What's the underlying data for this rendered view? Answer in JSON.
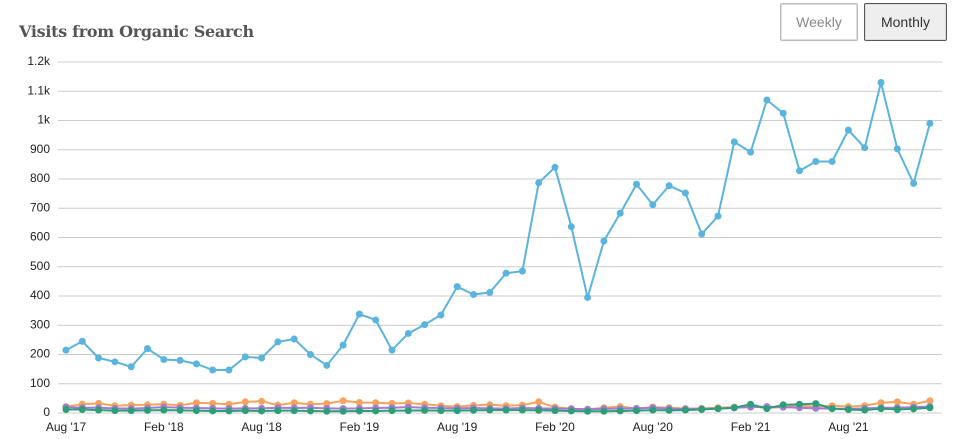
{
  "chart_data": {
    "type": "line",
    "title": "Visits from Organic Search",
    "controls": [
      "Weekly",
      "Monthly"
    ],
    "categories": [
      "Aug '17",
      null,
      null,
      null,
      null,
      null,
      "Feb '18",
      null,
      null,
      null,
      null,
      null,
      "Aug '18",
      null,
      null,
      null,
      null,
      null,
      "Feb '19",
      null,
      null,
      null,
      null,
      null,
      "Aug '19",
      null,
      null,
      null,
      null,
      null,
      "Feb '20",
      null,
      null,
      null,
      null,
      null,
      "Aug '20",
      null,
      null,
      null,
      null,
      null,
      "Feb '21",
      null,
      null,
      null,
      null,
      null,
      "Aug '21",
      null,
      null,
      null,
      null,
      null
    ],
    "series": [
      {
        "color": "#f6a45d",
        "values": [
          22,
          30,
          33,
          25,
          27,
          28,
          30,
          26,
          35,
          33,
          30,
          38,
          40,
          27,
          35,
          30,
          32,
          42,
          36,
          35,
          33,
          34,
          30,
          25,
          22,
          26,
          28,
          25,
          27,
          38,
          20,
          15,
          12,
          18,
          22,
          15,
          20,
          18,
          15,
          16,
          18,
          20,
          22,
          18,
          20,
          25,
          22,
          25,
          22,
          25,
          35,
          38,
          30,
          42
        ]
      },
      {
        "color": "#a57bd1",
        "values": [
          20,
          18,
          18,
          16,
          15,
          17,
          20,
          18,
          17,
          16,
          15,
          16,
          16,
          18,
          17,
          18,
          16,
          15,
          16,
          17,
          18,
          20,
          18,
          17,
          16,
          17,
          16,
          15,
          17,
          16,
          15,
          14,
          13,
          14,
          15,
          16,
          18,
          15,
          14,
          14,
          15,
          18,
          20,
          22,
          20,
          18,
          16,
          15,
          14,
          16,
          18,
          18,
          20,
          22
        ]
      },
      {
        "color": "#2e9e7a",
        "values": [
          12,
          12,
          10,
          8,
          8,
          9,
          10,
          9,
          8,
          7,
          7,
          8,
          7,
          8,
          8,
          7,
          6,
          6,
          7,
          7,
          8,
          8,
          9,
          8,
          8,
          9,
          10,
          10,
          10,
          9,
          8,
          7,
          6,
          6,
          7,
          8,
          10,
          9,
          10,
          12,
          15,
          18,
          30,
          15,
          28,
          30,
          32,
          15,
          12,
          10,
          15,
          12,
          14,
          18
        ]
      },
      {
        "color": "#5ab4de",
        "values": [
          215,
          245,
          188,
          175,
          158,
          220,
          183,
          180,
          168,
          147,
          147,
          192,
          188,
          243,
          253,
          200,
          163,
          232,
          338,
          318,
          215,
          272,
          302,
          335,
          432,
          405,
          412,
          478,
          485,
          787,
          840,
          637,
          395,
          588,
          683,
          782,
          712,
          777,
          752,
          612,
          673,
          927,
          892,
          1070,
          1025,
          828,
          860,
          860,
          967,
          907,
          1130,
          903,
          785,
          990
        ]
      }
    ],
    "ylim": [
      0,
      1200
    ],
    "yticks": [
      0,
      100,
      200,
      300,
      400,
      500,
      600,
      700,
      800,
      900,
      {
        "value": 1000,
        "label": "1k"
      },
      {
        "value": 1100,
        "label": "1.1k"
      },
      {
        "value": 1200,
        "label": "1.2k"
      }
    ],
    "grid": true
  }
}
